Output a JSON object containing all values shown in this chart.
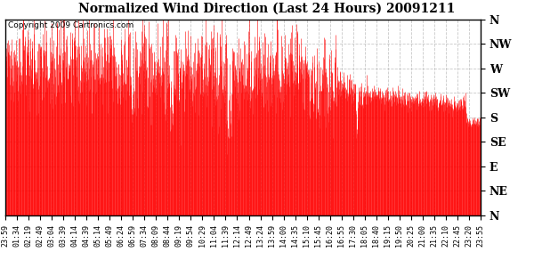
{
  "title": "Normalized Wind Direction (Last 24 Hours) 20091211",
  "copyright_text": "Copyright 2009 Cartronics.com",
  "line_color": "#FF0000",
  "background_color": "#FFFFFF",
  "grid_color": "#BBBBBB",
  "ytick_labels": [
    "N",
    "NW",
    "W",
    "SW",
    "S",
    "SE",
    "E",
    "NE",
    "N"
  ],
  "ytick_values": [
    1.0,
    0.875,
    0.75,
    0.625,
    0.5,
    0.375,
    0.25,
    0.125,
    0.0
  ],
  "xtick_labels": [
    "23:59",
    "01:34",
    "02:19",
    "02:49",
    "03:04",
    "03:39",
    "04:14",
    "04:39",
    "05:14",
    "05:49",
    "06:24",
    "06:59",
    "07:34",
    "08:09",
    "08:44",
    "09:19",
    "09:54",
    "10:29",
    "11:04",
    "11:39",
    "12:14",
    "12:49",
    "13:24",
    "13:59",
    "14:00",
    "14:35",
    "15:10",
    "15:45",
    "16:20",
    "16:55",
    "17:30",
    "18:05",
    "18:40",
    "19:15",
    "19:50",
    "20:25",
    "21:00",
    "21:35",
    "22:10",
    "22:45",
    "23:20",
    "23:55"
  ],
  "ylim": [
    0.0,
    1.0
  ],
  "seed": 42,
  "n_points": 1440
}
